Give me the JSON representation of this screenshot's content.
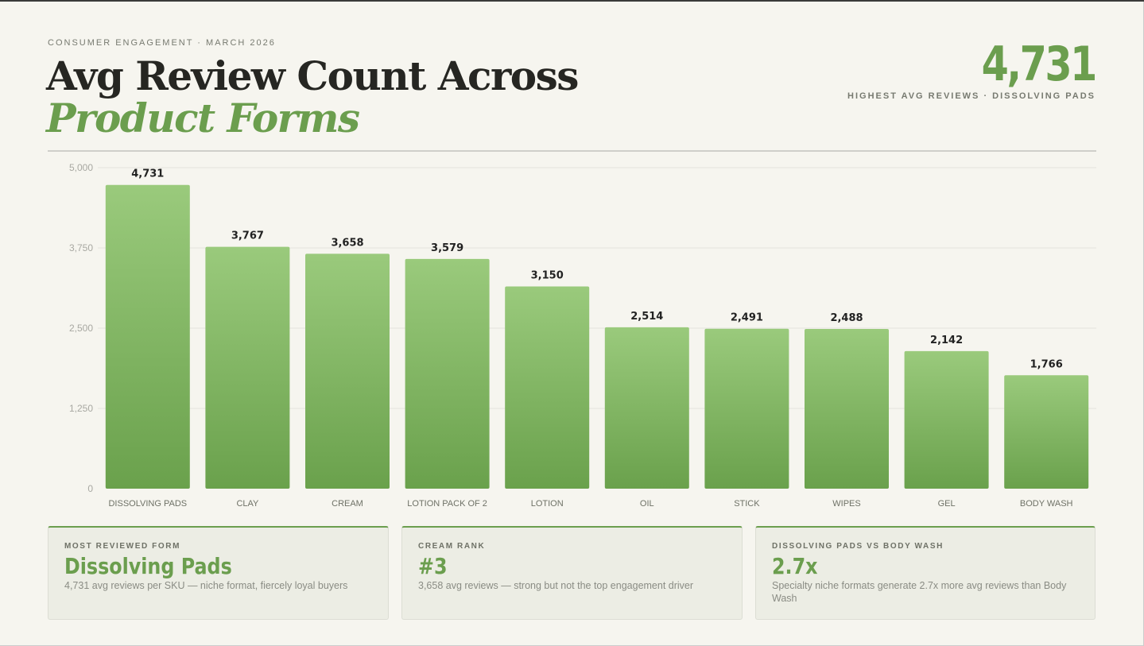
{
  "header": {
    "eyebrow": "CONSUMER ENGAGEMENT · MARCH 2026",
    "title_main": "Avg Review Count Across",
    "title_accent": "Product Forms"
  },
  "kpi": {
    "value": "4,731",
    "label": "HIGHEST AVG REVIEWS · DISSOLVING PADS"
  },
  "chart_data": {
    "type": "bar",
    "categories": [
      "DISSOLVING PADS",
      "CLAY",
      "CREAM",
      "LOTION PACK OF 2",
      "LOTION",
      "OIL",
      "STICK",
      "WIPES",
      "GEL",
      "BODY WASH"
    ],
    "values": [
      4731,
      3767,
      3658,
      3579,
      3150,
      2514,
      2491,
      2488,
      2142,
      1766
    ],
    "value_labels": [
      "4,731",
      "3,767",
      "3,658",
      "3,579",
      "3,150",
      "2,514",
      "2,491",
      "2,488",
      "2,142",
      "1,766"
    ],
    "y_ticks": [
      "0",
      "1,250",
      "2,500",
      "3,750",
      "5,000"
    ],
    "ylim": [
      0,
      5000
    ],
    "grid": true,
    "title": "",
    "xlabel": "",
    "ylabel": "",
    "colors": {
      "bar_top": "#9aca7c",
      "bar_bottom": "#6aa14c",
      "grid": "#e4e4de",
      "tick": "#a8a8a2",
      "label": "#222222",
      "category": "#6e7166"
    }
  },
  "cards": [
    {
      "label": "MOST REVIEWED FORM",
      "value": "Dissolving Pads",
      "desc": "4,731 avg reviews per SKU — niche format, fiercely loyal buyers"
    },
    {
      "label": "CREAM RANK",
      "value": "#3",
      "desc": "3,658 avg reviews — strong but not the top engagement driver"
    },
    {
      "label": "DISSOLVING PADS VS BODY WASH",
      "value": "2.7x",
      "desc": "Specialty niche formats generate 2.7x more avg reviews than Body Wash"
    }
  ]
}
